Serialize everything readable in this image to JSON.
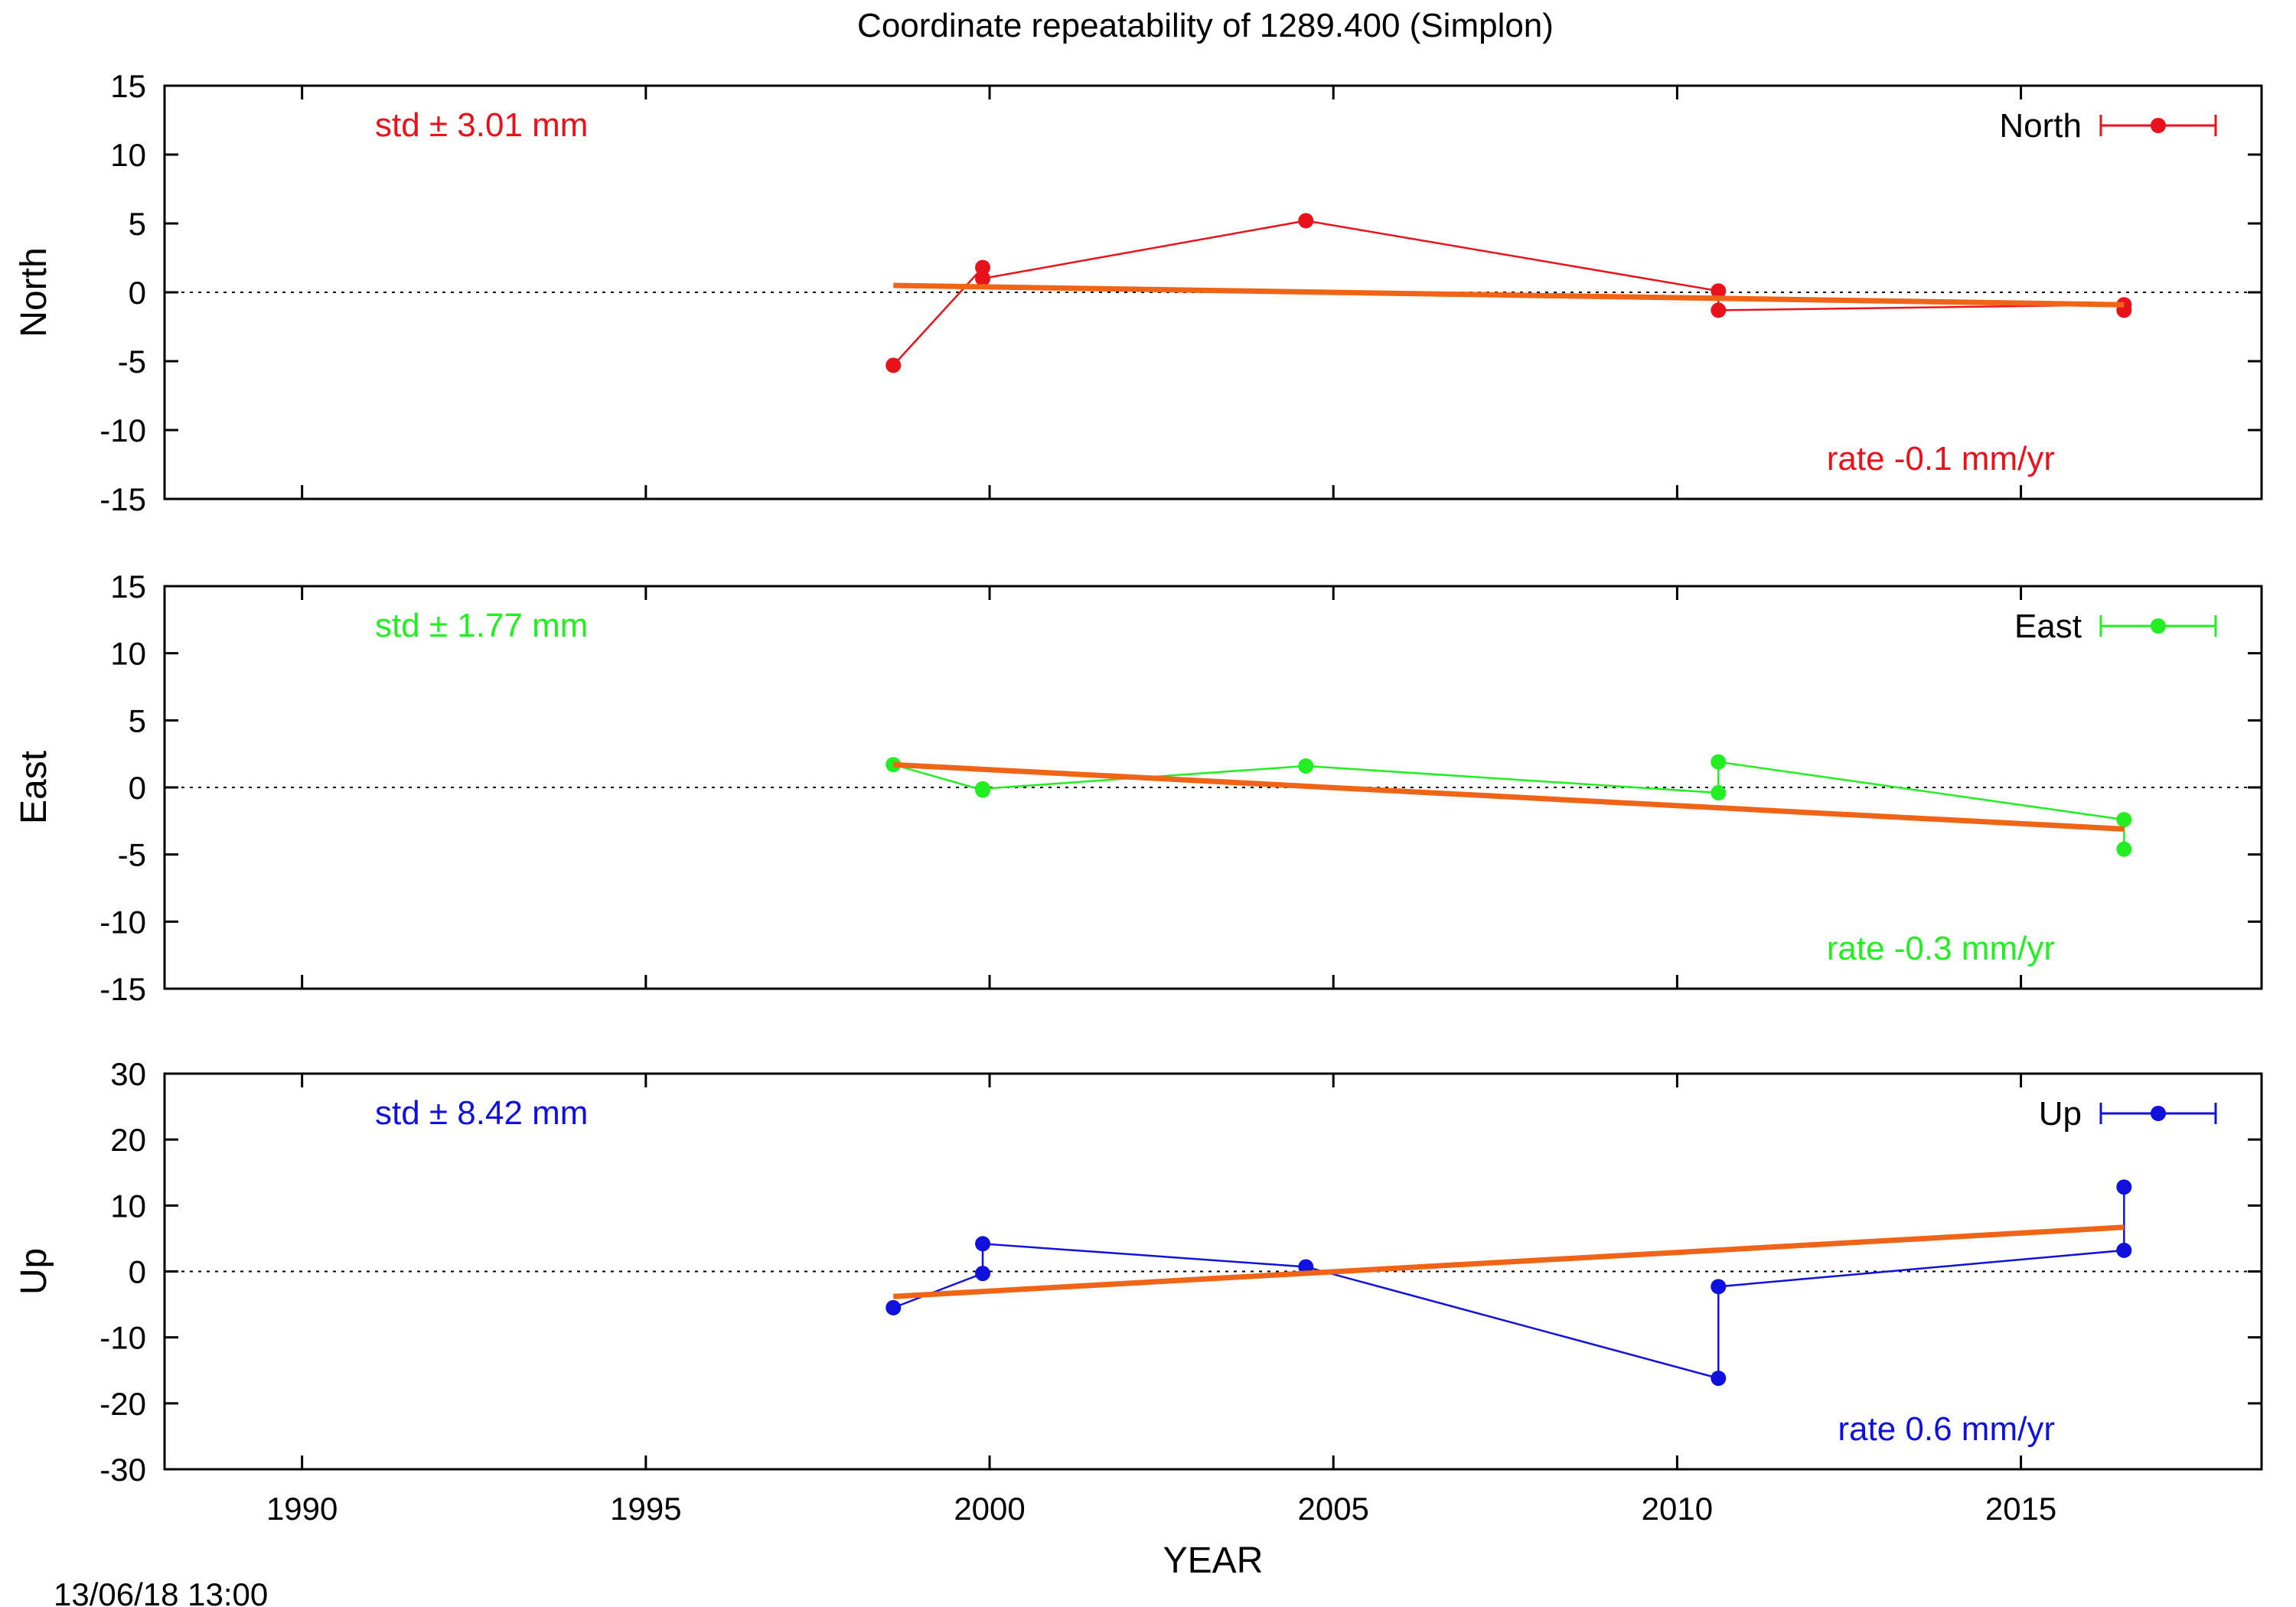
{
  "title": "Coordinate repeatability of 1289.400       (Simplon)",
  "xlabel": "YEAR",
  "timestamp": "13/06/18 13:00",
  "colors": {
    "north": "#e8121b",
    "east": "#22ee22",
    "up": "#1111dd",
    "trend": "#f06418",
    "frame": "#000000"
  },
  "chart_data": [
    {
      "type": "line",
      "name": "North",
      "ylabel": "North",
      "legend": "North",
      "std_text": "std ± 3.01 mm",
      "rate_text": "rate -0.1 mm/yr",
      "xlim": [
        1988,
        2018.5
      ],
      "ylim": [
        -15,
        15
      ],
      "x_ticks": [
        1990,
        1995,
        2000,
        2005,
        2010,
        2015
      ],
      "y_ticks": [
        15,
        10,
        5,
        0,
        -5,
        -10,
        -15
      ],
      "grid": false,
      "legend_position": "top-right",
      "points": [
        {
          "x": 1998.6,
          "y": -5.3
        },
        {
          "x": 1999.9,
          "y": 1.8
        },
        {
          "x": 1999.9,
          "y": 1.0
        },
        {
          "x": 2004.6,
          "y": 5.2
        },
        {
          "x": 2010.6,
          "y": 0.1
        },
        {
          "x": 2010.6,
          "y": -1.3
        },
        {
          "x": 2016.5,
          "y": -0.9
        },
        {
          "x": 2016.5,
          "y": -1.3
        }
      ],
      "trend": {
        "x": [
          1998.6,
          2016.5
        ],
        "y": [
          0.5,
          -0.9
        ]
      }
    },
    {
      "type": "line",
      "name": "East",
      "ylabel": "East",
      "legend": "East",
      "std_text": "std ± 1.77 mm",
      "rate_text": "rate -0.3 mm/yr",
      "xlim": [
        1988,
        2018.5
      ],
      "ylim": [
        -15,
        15
      ],
      "x_ticks": [
        1990,
        1995,
        2000,
        2005,
        2010,
        2015
      ],
      "y_ticks": [
        15,
        10,
        5,
        0,
        -5,
        -10,
        -15
      ],
      "grid": false,
      "legend_position": "top-right",
      "points": [
        {
          "x": 1998.6,
          "y": 1.7
        },
        {
          "x": 1999.9,
          "y": -0.2
        },
        {
          "x": 1999.9,
          "y": -0.1
        },
        {
          "x": 2004.6,
          "y": 1.6
        },
        {
          "x": 2010.6,
          "y": -0.4
        },
        {
          "x": 2010.6,
          "y": 1.9
        },
        {
          "x": 2016.5,
          "y": -2.4
        },
        {
          "x": 2016.5,
          "y": -4.6
        }
      ],
      "trend": {
        "x": [
          1998.6,
          2016.5
        ],
        "y": [
          1.7,
          -3.1
        ]
      }
    },
    {
      "type": "line",
      "name": "Up",
      "ylabel": "Up",
      "legend": "Up",
      "std_text": "std ± 8.42 mm",
      "rate_text": "rate  0.6 mm/yr",
      "xlim": [
        1988,
        2018.5
      ],
      "ylim": [
        -30,
        30
      ],
      "x_ticks": [
        1990,
        1995,
        2000,
        2005,
        2010,
        2015
      ],
      "y_ticks": [
        30,
        20,
        10,
        0,
        -10,
        -20,
        -30
      ],
      "grid": false,
      "legend_position": "top-right",
      "points": [
        {
          "x": 1998.6,
          "y": -5.5
        },
        {
          "x": 1999.9,
          "y": -0.3
        },
        {
          "x": 1999.9,
          "y": 4.2
        },
        {
          "x": 2004.6,
          "y": 0.7
        },
        {
          "x": 2010.6,
          "y": -16.2
        },
        {
          "x": 2010.6,
          "y": -2.3
        },
        {
          "x": 2016.5,
          "y": 3.2
        },
        {
          "x": 2016.5,
          "y": 12.8
        }
      ],
      "trend": {
        "x": [
          1998.6,
          2016.5
        ],
        "y": [
          -3.8,
          6.7
        ]
      }
    }
  ]
}
